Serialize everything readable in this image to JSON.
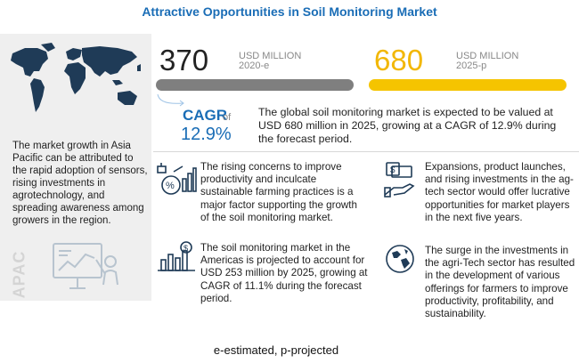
{
  "title": "Attractive Opportunities in Soil Monitoring Market",
  "left_panel": {
    "text": "The market growth in Asia Pacific can be attributed to the rapid adoption of sensors, rising investments in agrotechnology, and spreading awareness among growers in the region.",
    "region_label": "APAC"
  },
  "stats": {
    "value_2020": "370",
    "unit_2020_line1": "USD MILLION",
    "unit_2020_line2": "2020-e",
    "value_2025": "680",
    "unit_2025_line1": "USD MILLION",
    "unit_2025_line2": "2025-p"
  },
  "cagr": {
    "label": "CAGR",
    "of": "of",
    "value": "12.9%",
    "description": "The global soil monitoring market is expected to be valued at USD 680 million in 2025, growing at a CAGR of 12.9% during the forecast period."
  },
  "points": [
    {
      "text": "The rising concerns to improve productivity and inculcate sustainable farming practices is a major factor supporting the growth of the soil monitoring market.",
      "icon": "chart-percent-icon"
    },
    {
      "text": "Expansions, product launches, and rising investments in the ag-tech sector would offer lucrative opportunities for market players in the next five years.",
      "icon": "money-hand-icon"
    },
    {
      "text": "The soil monitoring market in the Americas is projected to account for USD 253 million by 2025, growing at CAGR of 11.1% during the forecast period.",
      "icon": "dollar-bar-chart-icon"
    },
    {
      "text": "The surge in the investments in the agri-Tech sector has resulted in the development of various offerings for farmers to improve productivity, profitability, and sustainability.",
      "icon": "globe-icon"
    }
  ],
  "footnote": "e-estimated, p-projected",
  "colors": {
    "title": "#1a6db6",
    "bar_2020": "#7f7f7f",
    "bar_2025": "#f5c400",
    "accent_2025": "#f2b705",
    "cagr": "#1a6db6",
    "left_panel_bg": "#efefef"
  }
}
